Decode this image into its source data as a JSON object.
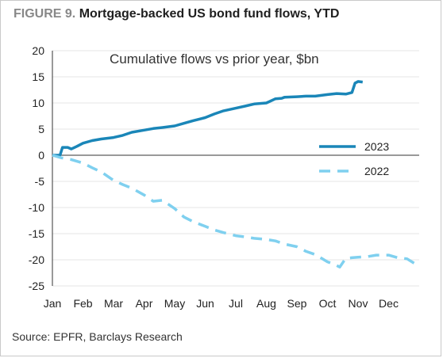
{
  "header": {
    "figure_label": "FIGURE 9.",
    "title": "Mortgage-backed US bond fund flows, YTD"
  },
  "footer": {
    "source": "Source: EPFR, Barclays Research"
  },
  "colors": {
    "series_2023": "#1a86b8",
    "series_2022": "#7fd0ef",
    "grid": "#e6e6e6",
    "axis": "#333333"
  },
  "chart_data": {
    "type": "line",
    "title": "Cumulative flows  vs prior year, $bn",
    "xlabel": "",
    "ylabel": "",
    "ylim": [
      -25,
      20
    ],
    "yticks": [
      20,
      15,
      10,
      5,
      0,
      -5,
      -10,
      -15,
      -20,
      -25
    ],
    "xlim": [
      0,
      12
    ],
    "categories": [
      "Jan",
      "Feb",
      "Mar",
      "Apr",
      "May",
      "Jun",
      "Jul",
      "Aug",
      "Sep",
      "Oct",
      "Nov",
      "Dec"
    ],
    "grid": "horizontal",
    "legend_position": "right",
    "series": [
      {
        "name": "2023",
        "style": "solid",
        "x": [
          0,
          0.25,
          0.33,
          0.5,
          0.62,
          0.8,
          1.0,
          1.3,
          1.6,
          2.0,
          2.3,
          2.6,
          3.0,
          3.3,
          3.6,
          4.0,
          4.3,
          4.6,
          5.0,
          5.3,
          5.6,
          6.0,
          6.3,
          6.6,
          7.0,
          7.3,
          7.5,
          7.6,
          8.0,
          8.3,
          8.6,
          9.0,
          9.3,
          9.6,
          9.8,
          9.9,
          10.0,
          10.15
        ],
        "y": [
          0,
          0,
          1.5,
          1.5,
          1.2,
          1.7,
          2.3,
          2.8,
          3.1,
          3.4,
          3.8,
          4.4,
          4.8,
          5.1,
          5.3,
          5.6,
          6.1,
          6.6,
          7.2,
          7.9,
          8.5,
          9.0,
          9.4,
          9.8,
          10.0,
          10.8,
          10.9,
          11.1,
          11.2,
          11.3,
          11.3,
          11.6,
          11.8,
          11.7,
          12.0,
          13.8,
          14.1,
          14.0
        ]
      },
      {
        "name": "2022",
        "style": "dashed",
        "x": [
          0,
          0.3,
          0.6,
          1.0,
          1.3,
          1.6,
          2.0,
          2.3,
          2.6,
          3.0,
          3.3,
          3.6,
          4.0,
          4.3,
          4.6,
          5.0,
          5.3,
          5.6,
          6.0,
          6.3,
          6.6,
          7.0,
          7.3,
          7.6,
          8.0,
          8.3,
          8.6,
          9.0,
          9.2,
          9.4,
          9.6,
          9.8,
          10.0,
          10.3,
          10.6,
          11.0,
          11.3,
          11.6,
          11.9
        ],
        "y": [
          0,
          -0.5,
          -0.8,
          -1.5,
          -2.4,
          -3.2,
          -4.8,
          -5.6,
          -6.3,
          -7.6,
          -8.8,
          -8.6,
          -10.2,
          -11.8,
          -12.7,
          -13.6,
          -14.3,
          -14.8,
          -15.4,
          -15.6,
          -15.9,
          -16.1,
          -16.4,
          -17.0,
          -17.5,
          -18.4,
          -19.0,
          -20.4,
          -20.8,
          -21.4,
          -19.7,
          -19.6,
          -19.5,
          -19.4,
          -19.1,
          -19.1,
          -19.6,
          -19.8,
          -20.9
        ]
      }
    ]
  }
}
